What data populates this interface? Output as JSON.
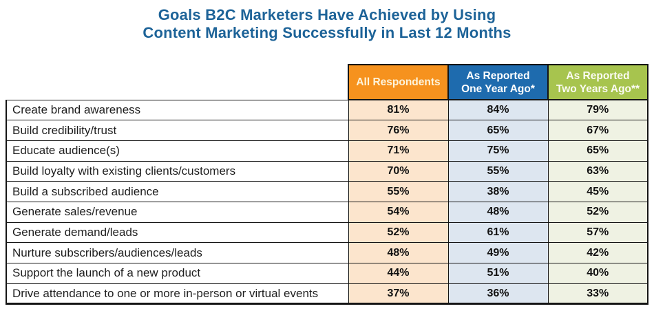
{
  "page": {
    "title_line1": "Goals B2C Marketers Have Achieved by Using",
    "title_line2": "Content Marketing Successfully in Last 12 Months",
    "title_color": "#1D6398"
  },
  "table": {
    "headers": [
      {
        "text": "All Respondents",
        "bg": "#F6921E",
        "fg": "#FDF4DC"
      },
      {
        "text": "As Reported\nOne Year Ago*",
        "bg": "#1E6BAE",
        "fg": "#FFFFFF"
      },
      {
        "text": "As Reported\nTwo Years Ago**",
        "bg": "#A7C44E",
        "fg": "#FBFBF2"
      }
    ],
    "cell_bgs": [
      "#FCE5CD",
      "#DDE6F0",
      "#EFF2E3"
    ],
    "border_color": "#141414"
  },
  "chart_data": {
    "type": "table",
    "title": "Goals B2C Marketers Have Achieved by Using Content Marketing Successfully in Last 12 Months",
    "categories": [
      "Create brand awareness",
      "Build credibility/trust",
      "Educate audience(s)",
      "Build loyalty with existing clients/customers",
      "Build a subscribed audience",
      "Generate sales/revenue",
      "Generate demand/leads",
      "Nurture subscribers/audiences/leads",
      "Support the launch of a new product",
      "Drive attendance to one or more in-person or virtual events"
    ],
    "series": [
      {
        "name": "All Respondents",
        "unit": "%",
        "values": [
          81,
          76,
          71,
          70,
          55,
          54,
          52,
          48,
          44,
          37
        ]
      },
      {
        "name": "As Reported One Year Ago*",
        "unit": "%",
        "values": [
          84,
          65,
          75,
          55,
          38,
          48,
          61,
          49,
          51,
          36
        ]
      },
      {
        "name": "As Reported Two Years Ago**",
        "unit": "%",
        "values": [
          79,
          67,
          65,
          63,
          45,
          52,
          57,
          42,
          40,
          33
        ]
      }
    ]
  }
}
